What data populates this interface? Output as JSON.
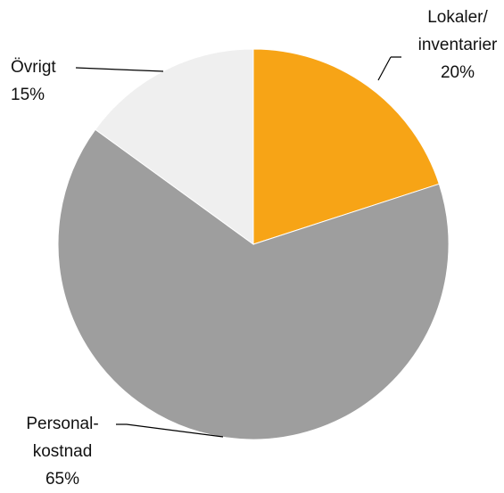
{
  "chart_data": {
    "type": "pie",
    "categories": [
      "Lokaler/\ninventarier",
      "Personal-\nkostnad",
      "Övrigt"
    ],
    "values": [
      20,
      65,
      15
    ],
    "value_labels": [
      "20%",
      "65%",
      "15%"
    ],
    "colors": [
      "#F7A416",
      "#9E9E9E",
      "#EFEFEF"
    ]
  }
}
